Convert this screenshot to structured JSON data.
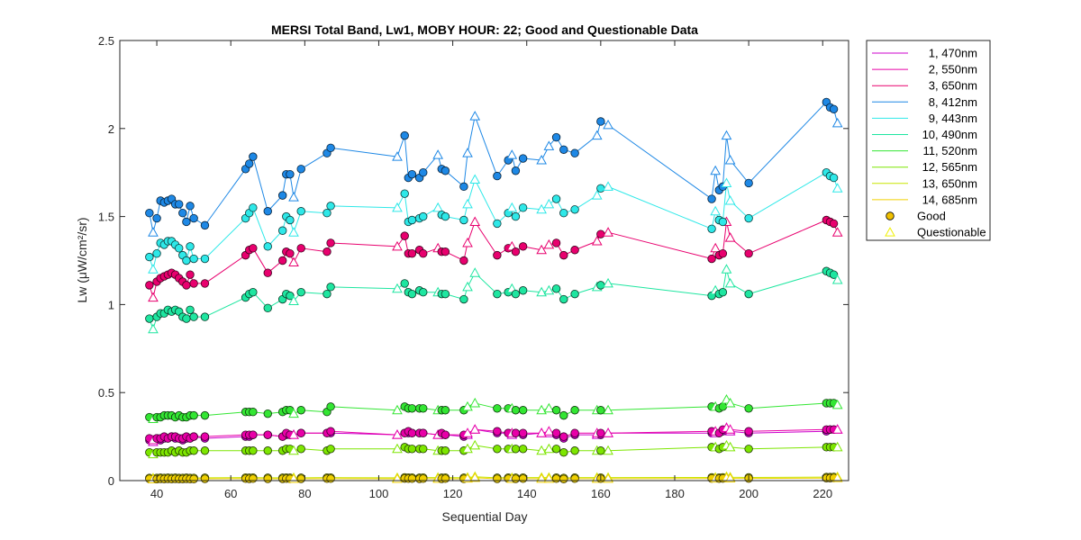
{
  "chart_data": {
    "type": "line",
    "title": "MERSI Total Band,  Lw1, MOBY HOUR: 22;  Good and Questionable Data",
    "xlabel": "Sequential Day",
    "ylabel": "Lw (μW/cm²/sr)",
    "xlim": [
      30,
      227
    ],
    "ylim": [
      0,
      2.5
    ],
    "xticks": [
      40,
      60,
      80,
      100,
      120,
      140,
      160,
      180,
      200,
      220
    ],
    "yticks": [
      0,
      0.5,
      1,
      1.5,
      2,
      2.5
    ],
    "xtick_labels": [
      "40",
      "60",
      "80",
      "100",
      "120",
      "140",
      "160",
      "180",
      "200",
      "220"
    ],
    "ytick_labels": [
      "0",
      "0.5",
      "1",
      "1.5",
      "2",
      "2.5"
    ],
    "grid": false,
    "legend_position": "outside-top-right",
    "x": [
      38,
      39,
      40,
      41,
      42,
      43,
      44,
      45,
      46,
      47,
      48,
      49,
      50,
      53,
      64,
      65,
      66,
      70,
      74,
      75,
      76,
      77,
      79,
      86,
      87,
      105,
      107,
      108,
      109,
      111,
      112,
      116,
      117,
      118,
      123,
      124,
      126,
      132,
      135,
      136,
      137,
      139,
      144,
      146,
      148,
      150,
      153,
      159,
      160,
      162,
      190,
      191,
      192,
      193,
      194,
      195,
      200,
      221,
      222,
      223,
      224
    ],
    "questionable_days": [
      39,
      77,
      105,
      116,
      124,
      126,
      136,
      144,
      146,
      159,
      162,
      191,
      194,
      195,
      224
    ],
    "series": [
      {
        "name": "1, 470nm",
        "color": "#cc00cc",
        "values": [
          0.23,
          0.22,
          0.24,
          0.23,
          0.24,
          0.24,
          0.25,
          0.24,
          0.24,
          0.23,
          0.24,
          0.24,
          0.25,
          0.24,
          0.25,
          0.25,
          0.26,
          0.26,
          0.25,
          0.26,
          0.26,
          0.26,
          0.27,
          0.27,
          0.27,
          0.26,
          0.27,
          0.27,
          0.27,
          0.27,
          0.27,
          0.26,
          0.26,
          0.26,
          0.25,
          0.26,
          0.29,
          0.27,
          0.27,
          0.26,
          0.27,
          0.26,
          0.27,
          0.27,
          0.26,
          0.24,
          0.26,
          0.26,
          0.26,
          0.27,
          0.27,
          0.27,
          0.27,
          0.28,
          0.3,
          0.28,
          0.27,
          0.28,
          0.29,
          0.29,
          0.29
        ]
      },
      {
        "name": "2, 550nm",
        "color": "#e800a8",
        "values": [
          0.24,
          0.23,
          0.24,
          0.24,
          0.25,
          0.24,
          0.25,
          0.25,
          0.24,
          0.24,
          0.25,
          0.24,
          0.25,
          0.25,
          0.26,
          0.26,
          0.26,
          0.26,
          0.25,
          0.27,
          0.26,
          0.26,
          0.27,
          0.27,
          0.28,
          0.26,
          0.27,
          0.28,
          0.27,
          0.27,
          0.27,
          0.26,
          0.27,
          0.26,
          0.26,
          0.27,
          0.29,
          0.28,
          0.27,
          0.27,
          0.27,
          0.27,
          0.27,
          0.28,
          0.27,
          0.25,
          0.27,
          0.27,
          0.27,
          0.27,
          0.28,
          0.28,
          0.27,
          0.29,
          0.3,
          0.29,
          0.28,
          0.29,
          0.29,
          0.29,
          0.29
        ]
      },
      {
        "name": "3, 650nm",
        "color": "#e8006e",
        "values": [
          1.11,
          1.04,
          1.13,
          1.15,
          1.16,
          1.17,
          1.18,
          1.17,
          1.15,
          1.13,
          1.11,
          1.17,
          1.12,
          1.12,
          1.28,
          1.31,
          1.32,
          1.18,
          1.25,
          1.3,
          1.29,
          1.24,
          1.32,
          1.3,
          1.35,
          1.33,
          1.39,
          1.29,
          1.29,
          1.31,
          1.29,
          1.32,
          1.3,
          1.3,
          1.25,
          1.35,
          1.47,
          1.28,
          1.32,
          1.33,
          1.3,
          1.33,
          1.31,
          1.34,
          1.35,
          1.28,
          1.31,
          1.36,
          1.4,
          1.41,
          1.26,
          1.32,
          1.28,
          1.29,
          1.47,
          1.38,
          1.29,
          1.48,
          1.47,
          1.46,
          1.41
        ]
      },
      {
        "name": "8, 412nm",
        "color": "#1e88e5",
        "values": [
          1.52,
          1.41,
          1.49,
          1.59,
          1.58,
          1.59,
          1.6,
          1.57,
          1.57,
          1.52,
          1.47,
          1.56,
          1.49,
          1.45,
          1.77,
          1.8,
          1.84,
          1.53,
          1.62,
          1.74,
          1.74,
          1.61,
          1.77,
          1.86,
          1.89,
          1.84,
          1.96,
          1.72,
          1.74,
          1.72,
          1.75,
          1.85,
          1.77,
          1.76,
          1.67,
          1.86,
          2.07,
          1.73,
          1.82,
          1.85,
          1.76,
          1.83,
          1.82,
          1.9,
          1.95,
          1.88,
          1.86,
          1.96,
          2.04,
          2.02,
          1.6,
          1.76,
          1.65,
          1.67,
          1.96,
          1.82,
          1.69,
          2.15,
          2.12,
          2.11,
          2.03
        ]
      },
      {
        "name": "9, 443nm",
        "color": "#2ee8e8",
        "values": [
          1.27,
          1.2,
          1.29,
          1.35,
          1.34,
          1.36,
          1.36,
          1.34,
          1.32,
          1.28,
          1.25,
          1.33,
          1.26,
          1.26,
          1.49,
          1.52,
          1.55,
          1.33,
          1.42,
          1.5,
          1.48,
          1.41,
          1.53,
          1.52,
          1.56,
          1.55,
          1.63,
          1.47,
          1.48,
          1.49,
          1.5,
          1.55,
          1.51,
          1.5,
          1.48,
          1.57,
          1.71,
          1.46,
          1.52,
          1.55,
          1.5,
          1.55,
          1.54,
          1.57,
          1.6,
          1.52,
          1.54,
          1.62,
          1.66,
          1.67,
          1.43,
          1.53,
          1.48,
          1.47,
          1.69,
          1.59,
          1.49,
          1.75,
          1.73,
          1.72,
          1.66
        ]
      },
      {
        "name": "10, 490nm",
        "color": "#1ee6a0",
        "values": [
          0.92,
          0.86,
          0.93,
          0.95,
          0.95,
          0.97,
          0.96,
          0.97,
          0.96,
          0.93,
          0.92,
          0.97,
          0.93,
          0.93,
          1.04,
          1.06,
          1.07,
          0.98,
          1.03,
          1.06,
          1.05,
          1.02,
          1.07,
          1.06,
          1.1,
          1.09,
          1.12,
          1.07,
          1.06,
          1.08,
          1.07,
          1.07,
          1.06,
          1.06,
          1.03,
          1.1,
          1.18,
          1.06,
          1.07,
          1.09,
          1.06,
          1.08,
          1.07,
          1.08,
          1.09,
          1.03,
          1.06,
          1.1,
          1.11,
          1.12,
          1.05,
          1.08,
          1.06,
          1.07,
          1.2,
          1.12,
          1.06,
          1.19,
          1.18,
          1.17,
          1.14
        ]
      },
      {
        "name": "11, 520nm",
        "color": "#33e633",
        "values": [
          0.36,
          0.35,
          0.36,
          0.36,
          0.37,
          0.37,
          0.37,
          0.36,
          0.37,
          0.36,
          0.36,
          0.37,
          0.37,
          0.37,
          0.39,
          0.39,
          0.39,
          0.38,
          0.39,
          0.4,
          0.4,
          0.38,
          0.4,
          0.39,
          0.42,
          0.4,
          0.42,
          0.41,
          0.41,
          0.41,
          0.41,
          0.4,
          0.4,
          0.4,
          0.4,
          0.42,
          0.44,
          0.41,
          0.41,
          0.41,
          0.4,
          0.4,
          0.4,
          0.41,
          0.4,
          0.37,
          0.4,
          0.4,
          0.4,
          0.4,
          0.42,
          0.42,
          0.41,
          0.42,
          0.46,
          0.44,
          0.41,
          0.44,
          0.44,
          0.44,
          0.43
        ]
      },
      {
        "name": "12, 565nm",
        "color": "#7de600",
        "values": [
          0.16,
          0.15,
          0.16,
          0.16,
          0.16,
          0.16,
          0.17,
          0.16,
          0.17,
          0.16,
          0.16,
          0.17,
          0.17,
          0.17,
          0.17,
          0.17,
          0.17,
          0.17,
          0.17,
          0.18,
          0.18,
          0.17,
          0.18,
          0.17,
          0.18,
          0.18,
          0.19,
          0.18,
          0.18,
          0.18,
          0.18,
          0.17,
          0.17,
          0.17,
          0.17,
          0.18,
          0.2,
          0.18,
          0.18,
          0.18,
          0.18,
          0.18,
          0.17,
          0.18,
          0.18,
          0.16,
          0.17,
          0.17,
          0.17,
          0.17,
          0.19,
          0.19,
          0.18,
          0.19,
          0.2,
          0.19,
          0.18,
          0.19,
          0.19,
          0.19,
          0.19
        ]
      },
      {
        "name": "13, 650nm",
        "color": "#c8e600",
        "values": [
          0.015,
          0.014,
          0.015,
          0.016,
          0.015,
          0.016,
          0.015,
          0.016,
          0.015,
          0.015,
          0.016,
          0.015,
          0.015,
          0.016,
          0.017,
          0.016,
          0.017,
          0.016,
          0.016,
          0.017,
          0.016,
          0.016,
          0.016,
          0.017,
          0.017,
          0.016,
          0.018,
          0.017,
          0.017,
          0.016,
          0.017,
          0.017,
          0.016,
          0.017,
          0.016,
          0.018,
          0.022,
          0.016,
          0.017,
          0.016,
          0.016,
          0.017,
          0.017,
          0.017,
          0.017,
          0.015,
          0.017,
          0.017,
          0.017,
          0.017,
          0.018,
          0.018,
          0.017,
          0.018,
          0.022,
          0.019,
          0.018,
          0.02,
          0.02,
          0.021,
          0.021
        ]
      },
      {
        "name": "14, 685nm",
        "color": "#f0d000",
        "values": [
          0.01,
          0.008,
          0.009,
          0.01,
          0.009,
          0.01,
          0.009,
          0.01,
          0.009,
          0.009,
          0.01,
          0.009,
          0.009,
          0.01,
          0.011,
          0.01,
          0.011,
          0.01,
          0.01,
          0.011,
          0.01,
          0.01,
          0.01,
          0.011,
          0.011,
          0.01,
          0.012,
          0.011,
          0.011,
          0.01,
          0.011,
          0.011,
          0.01,
          0.011,
          0.01,
          0.012,
          0.016,
          0.01,
          0.011,
          0.01,
          0.01,
          0.011,
          0.011,
          0.011,
          0.011,
          0.009,
          0.011,
          0.011,
          0.011,
          0.011,
          0.012,
          0.012,
          0.011,
          0.012,
          0.016,
          0.013,
          0.012,
          0.014,
          0.014,
          0.015,
          0.015
        ]
      }
    ],
    "marker_legend": [
      {
        "name": "Good",
        "marker": "circle",
        "color": "#f0c000"
      },
      {
        "name": "Questionable",
        "marker": "triangle",
        "color": "#f0f000"
      }
    ]
  }
}
